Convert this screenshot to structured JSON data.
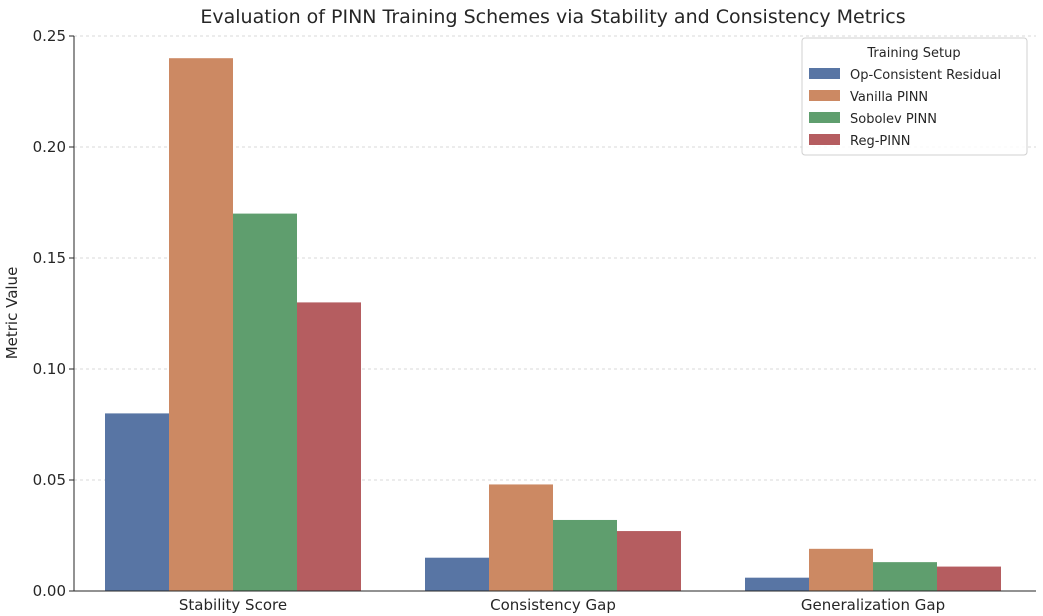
{
  "chart_data": {
    "type": "bar",
    "title": "Evaluation of PINN Training Schemes via Stability and Consistency Metrics",
    "xlabel": "",
    "ylabel": "Metric Value",
    "categories": [
      "Stability Score",
      "Consistency Gap",
      "Generalization Gap"
    ],
    "series": [
      {
        "name": "Op-Consistent Residual",
        "color": "#5875a4",
        "values": [
          0.08,
          0.015,
          0.006
        ]
      },
      {
        "name": "Vanilla PINN",
        "color": "#cc8963",
        "values": [
          0.24,
          0.048,
          0.019
        ]
      },
      {
        "name": "Sobolev PINN",
        "color": "#5f9e6e",
        "values": [
          0.17,
          0.032,
          0.013
        ]
      },
      {
        "name": "Reg-PINN",
        "color": "#b55d60",
        "values": [
          0.13,
          0.027,
          0.011
        ]
      }
    ],
    "ylim": [
      0,
      0.25
    ],
    "yticks": [
      0.0,
      0.05,
      0.1,
      0.15,
      0.2,
      0.25
    ],
    "ytick_labels": [
      "0.00",
      "0.05",
      "0.10",
      "0.15",
      "0.20",
      "0.25"
    ],
    "grid": true,
    "legend": {
      "title": "Training Setup",
      "placement": "top-right"
    }
  }
}
